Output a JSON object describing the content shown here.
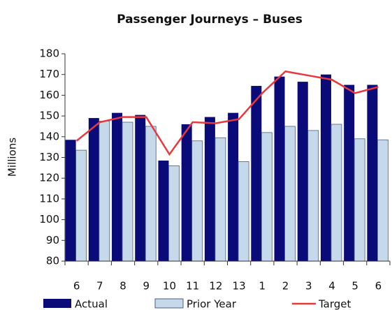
{
  "chart_data": {
    "type": "bar",
    "title": "Passenger Journeys – Buses",
    "y_label": "Millions",
    "categories": [
      "6",
      "7",
      "8",
      "9",
      "10",
      "11",
      "12",
      "13",
      "1",
      "2",
      "3",
      "4",
      "5",
      "6"
    ],
    "series": [
      {
        "name": "Actual",
        "type": "bar",
        "color": "#0a0a78",
        "values": [
          138.5,
          149,
          151.5,
          150.5,
          128.5,
          146,
          149.5,
          151.5,
          164.5,
          169,
          166.5,
          170,
          165,
          165
        ]
      },
      {
        "name": "Prior Year",
        "type": "bar",
        "color": "#c5d9ea",
        "values": [
          133.5,
          147.5,
          147,
          145,
          126,
          138,
          139.5,
          128,
          142,
          145,
          143,
          146,
          139,
          138.5
        ]
      },
      {
        "name": "Target",
        "type": "line",
        "color": "#e8383d",
        "values": [
          138,
          147,
          149.5,
          149.5,
          131.5,
          147,
          146.5,
          148.5,
          161,
          171.5,
          169.5,
          167.5,
          161,
          164
        ]
      }
    ],
    "ylim": [
      80,
      180
    ],
    "yticks": [
      80,
      90,
      100,
      110,
      120,
      130,
      140,
      150,
      160,
      170,
      180
    ],
    "grid": false,
    "legend": "bottom"
  }
}
